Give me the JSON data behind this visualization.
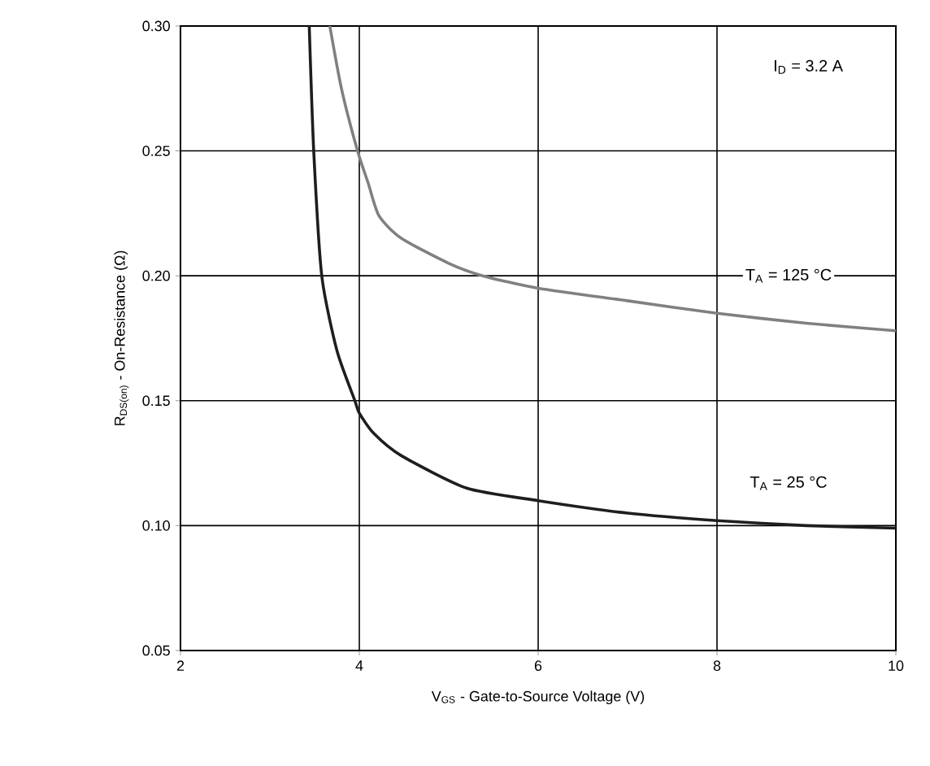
{
  "chart_data": {
    "type": "line",
    "xlabel": "V$_{GS}$ - Gate-to-Source Voltage (V)",
    "ylabel": "R$_{DS(on)}$ - On-Resistance (Ω)",
    "xlim": [
      2,
      10
    ],
    "ylim": [
      0.05,
      0.3
    ],
    "xticks": [
      2,
      4,
      6,
      8,
      10
    ],
    "yticks": [
      {
        "value": 0.05,
        "label": "0.05"
      },
      {
        "value": 0.1,
        "label": "0.10"
      },
      {
        "value": 0.15,
        "label": "0.15"
      },
      {
        "value": 0.2,
        "label": "0.20"
      },
      {
        "value": 0.25,
        "label": "0.25"
      },
      {
        "value": 0.3,
        "label": "0.30"
      }
    ],
    "grid": true,
    "marker": "none",
    "line_style": "solid",
    "series": [
      {
        "color": "#1e1e1e",
        "x": [
          3.44,
          3.49,
          3.58,
          3.75,
          3.95,
          4.0,
          4.16,
          4.47,
          5.2,
          6,
          7,
          8,
          9,
          10
        ],
        "values": [
          0.3,
          0.25,
          0.2,
          0.17,
          0.15,
          0.145,
          0.137,
          0.128,
          0.115,
          0.11,
          0.105,
          0.102,
          0.1,
          0.099
        ]
      },
      {
        "color": "#808080",
        "x": [
          3.67,
          3.8,
          3.98,
          4.1,
          4.22,
          4.47,
          5.0,
          5.38,
          6,
          7,
          8,
          9,
          10
        ],
        "values": [
          0.3,
          0.275,
          0.25,
          0.237,
          0.224,
          0.215,
          0.205,
          0.2,
          0.195,
          0.19,
          0.185,
          0.181,
          0.178
        ]
      }
    ],
    "annotations": [
      "I$_{D}$ = 3.2 A",
      "T$_{A}$ = 125 °C",
      "T$_{A}$ = 25 °C"
    ]
  }
}
